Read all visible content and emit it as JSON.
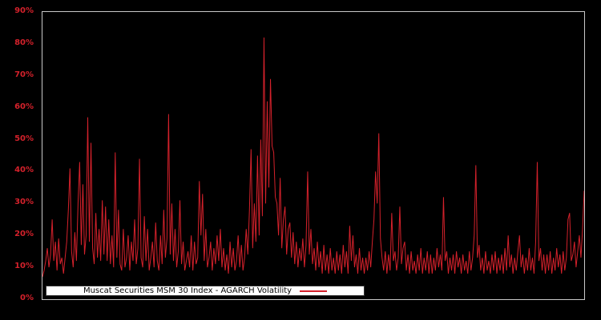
{
  "figure": {
    "background": "#000000"
  },
  "colors": {
    "series_line": "#d4212b",
    "tick_label": "#d4212b",
    "axis_border": "#c9c9c9",
    "legend_background": "#ffffff",
    "legend_border": "#333333",
    "legend_text": "#000000"
  },
  "legend": {
    "label": "Muscat Securities MSM 30 Index - AGARCH Volatility"
  },
  "chart_data": {
    "type": "line",
    "title": "Muscat Securities MSM 30 Index - AGARCH Volatility",
    "xlabel": "",
    "ylabel": "",
    "grid": false,
    "legend_position": "bottom-inside",
    "x_axis": {
      "tick_labels": [],
      "note": "no x tick labels shown"
    },
    "y_axis": {
      "min": 0,
      "max": 90,
      "tick_step": 10,
      "unit": "%",
      "tick_labels_top_to_bottom": [
        "90%",
        "80%",
        "70%",
        "60%",
        "50%",
        "40%",
        "30%",
        "20%",
        "10%",
        "0%"
      ]
    },
    "series": [
      {
        "name": "Muscat Securities MSM 30 Index - AGARCH Volatility",
        "color": "#d4212b",
        "unit": "percent",
        "values": [
          7,
          9,
          12,
          16,
          10,
          14,
          25,
          12,
          18,
          9,
          19,
          11,
          13,
          8,
          13,
          18,
          28,
          41,
          15,
          10,
          21,
          12,
          30,
          43,
          17,
          36,
          14,
          20,
          57,
          18,
          49,
          16,
          11,
          27,
          13,
          22,
          12,
          31,
          14,
          29,
          12,
          25,
          11,
          20,
          10,
          46,
          13,
          28,
          11,
          9,
          22,
          10,
          13,
          20,
          9,
          18,
          12,
          25,
          11,
          16,
          44,
          13,
          10,
          26,
          12,
          22,
          9,
          13,
          18,
          10,
          24,
          12,
          9,
          20,
          11,
          28,
          13,
          19,
          58,
          14,
          30,
          12,
          22,
          10,
          15,
          31,
          11,
          18,
          9,
          12,
          15,
          10,
          20,
          9,
          18,
          11,
          13,
          37,
          20,
          33,
          12,
          22,
          10,
          13,
          18,
          9,
          16,
          11,
          20,
          12,
          22,
          10,
          16,
          9,
          14,
          8,
          18,
          10,
          16,
          9,
          12,
          20,
          10,
          17,
          9,
          13,
          22,
          14,
          28,
          47,
          16,
          30,
          18,
          45,
          20,
          50,
          26,
          82,
          30,
          62,
          35,
          69,
          48,
          46,
          32,
          30,
          20,
          38,
          16,
          25,
          29,
          14,
          22,
          24,
          13,
          21,
          11,
          18,
          10,
          16,
          12,
          19,
          10,
          17,
          40,
          14,
          22,
          11,
          16,
          9,
          18,
          10,
          15,
          8,
          17,
          9,
          14,
          8,
          16,
          9,
          13,
          8,
          15,
          9,
          14,
          8,
          17,
          10,
          15,
          8,
          23,
          12,
          20,
          10,
          14,
          8,
          16,
          9,
          13,
          8,
          13,
          9,
          15,
          10,
          18,
          25,
          40,
          30,
          52,
          19,
          13,
          9,
          15,
          8,
          14,
          9,
          27,
          12,
          15,
          9,
          13,
          29,
          11,
          16,
          18,
          9,
          14,
          8,
          15,
          9,
          12,
          8,
          14,
          9,
          16,
          8,
          13,
          9,
          15,
          8,
          14,
          8,
          13,
          9,
          16,
          10,
          14,
          9,
          32,
          12,
          15,
          8,
          13,
          9,
          14,
          8,
          15,
          10,
          13,
          8,
          14,
          9,
          12,
          8,
          15,
          9,
          13,
          20,
          42,
          13,
          17,
          9,
          13,
          8,
          15,
          9,
          12,
          8,
          14,
          9,
          15,
          8,
          13,
          9,
          14,
          8,
          16,
          9,
          20,
          10,
          14,
          8,
          13,
          9,
          15,
          20,
          10,
          14,
          8,
          13,
          9,
          16,
          9,
          13,
          8,
          18,
          43,
          12,
          16,
          9,
          14,
          8,
          14,
          9,
          15,
          8,
          13,
          9,
          16,
          10,
          14,
          8,
          15,
          9,
          13,
          25,
          27,
          12,
          14,
          18,
          10,
          15,
          20,
          13,
          22,
          34
        ]
      }
    ]
  }
}
